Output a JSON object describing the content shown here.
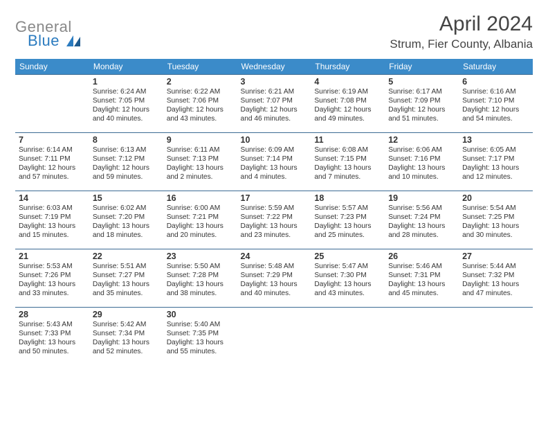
{
  "logo": {
    "word1": "General",
    "word2": "Blue"
  },
  "title": "April 2024",
  "location": "Strum, Fier County, Albania",
  "colors": {
    "header_bg": "#3b8bc9",
    "header_text": "#ffffff",
    "border": "#3b6a93",
    "text": "#333333",
    "muted": "#888888",
    "logo_gray": "#888888",
    "logo_blue": "#2b7bbf"
  },
  "day_headers": [
    "Sunday",
    "Monday",
    "Tuesday",
    "Wednesday",
    "Thursday",
    "Friday",
    "Saturday"
  ],
  "weeks": [
    [
      null,
      {
        "n": "1",
        "sr": "6:24 AM",
        "ss": "7:05 PM",
        "dl1": "Daylight: 12 hours",
        "dl2": "and 40 minutes."
      },
      {
        "n": "2",
        "sr": "6:22 AM",
        "ss": "7:06 PM",
        "dl1": "Daylight: 12 hours",
        "dl2": "and 43 minutes."
      },
      {
        "n": "3",
        "sr": "6:21 AM",
        "ss": "7:07 PM",
        "dl1": "Daylight: 12 hours",
        "dl2": "and 46 minutes."
      },
      {
        "n": "4",
        "sr": "6:19 AM",
        "ss": "7:08 PM",
        "dl1": "Daylight: 12 hours",
        "dl2": "and 49 minutes."
      },
      {
        "n": "5",
        "sr": "6:17 AM",
        "ss": "7:09 PM",
        "dl1": "Daylight: 12 hours",
        "dl2": "and 51 minutes."
      },
      {
        "n": "6",
        "sr": "6:16 AM",
        "ss": "7:10 PM",
        "dl1": "Daylight: 12 hours",
        "dl2": "and 54 minutes."
      }
    ],
    [
      {
        "n": "7",
        "sr": "6:14 AM",
        "ss": "7:11 PM",
        "dl1": "Daylight: 12 hours",
        "dl2": "and 57 minutes."
      },
      {
        "n": "8",
        "sr": "6:13 AM",
        "ss": "7:12 PM",
        "dl1": "Daylight: 12 hours",
        "dl2": "and 59 minutes."
      },
      {
        "n": "9",
        "sr": "6:11 AM",
        "ss": "7:13 PM",
        "dl1": "Daylight: 13 hours",
        "dl2": "and 2 minutes."
      },
      {
        "n": "10",
        "sr": "6:09 AM",
        "ss": "7:14 PM",
        "dl1": "Daylight: 13 hours",
        "dl2": "and 4 minutes."
      },
      {
        "n": "11",
        "sr": "6:08 AM",
        "ss": "7:15 PM",
        "dl1": "Daylight: 13 hours",
        "dl2": "and 7 minutes."
      },
      {
        "n": "12",
        "sr": "6:06 AM",
        "ss": "7:16 PM",
        "dl1": "Daylight: 13 hours",
        "dl2": "and 10 minutes."
      },
      {
        "n": "13",
        "sr": "6:05 AM",
        "ss": "7:17 PM",
        "dl1": "Daylight: 13 hours",
        "dl2": "and 12 minutes."
      }
    ],
    [
      {
        "n": "14",
        "sr": "6:03 AM",
        "ss": "7:19 PM",
        "dl1": "Daylight: 13 hours",
        "dl2": "and 15 minutes."
      },
      {
        "n": "15",
        "sr": "6:02 AM",
        "ss": "7:20 PM",
        "dl1": "Daylight: 13 hours",
        "dl2": "and 18 minutes."
      },
      {
        "n": "16",
        "sr": "6:00 AM",
        "ss": "7:21 PM",
        "dl1": "Daylight: 13 hours",
        "dl2": "and 20 minutes."
      },
      {
        "n": "17",
        "sr": "5:59 AM",
        "ss": "7:22 PM",
        "dl1": "Daylight: 13 hours",
        "dl2": "and 23 minutes."
      },
      {
        "n": "18",
        "sr": "5:57 AM",
        "ss": "7:23 PM",
        "dl1": "Daylight: 13 hours",
        "dl2": "and 25 minutes."
      },
      {
        "n": "19",
        "sr": "5:56 AM",
        "ss": "7:24 PM",
        "dl1": "Daylight: 13 hours",
        "dl2": "and 28 minutes."
      },
      {
        "n": "20",
        "sr": "5:54 AM",
        "ss": "7:25 PM",
        "dl1": "Daylight: 13 hours",
        "dl2": "and 30 minutes."
      }
    ],
    [
      {
        "n": "21",
        "sr": "5:53 AM",
        "ss": "7:26 PM",
        "dl1": "Daylight: 13 hours",
        "dl2": "and 33 minutes."
      },
      {
        "n": "22",
        "sr": "5:51 AM",
        "ss": "7:27 PM",
        "dl1": "Daylight: 13 hours",
        "dl2": "and 35 minutes."
      },
      {
        "n": "23",
        "sr": "5:50 AM",
        "ss": "7:28 PM",
        "dl1": "Daylight: 13 hours",
        "dl2": "and 38 minutes."
      },
      {
        "n": "24",
        "sr": "5:48 AM",
        "ss": "7:29 PM",
        "dl1": "Daylight: 13 hours",
        "dl2": "and 40 minutes."
      },
      {
        "n": "25",
        "sr": "5:47 AM",
        "ss": "7:30 PM",
        "dl1": "Daylight: 13 hours",
        "dl2": "and 43 minutes."
      },
      {
        "n": "26",
        "sr": "5:46 AM",
        "ss": "7:31 PM",
        "dl1": "Daylight: 13 hours",
        "dl2": "and 45 minutes."
      },
      {
        "n": "27",
        "sr": "5:44 AM",
        "ss": "7:32 PM",
        "dl1": "Daylight: 13 hours",
        "dl2": "and 47 minutes."
      }
    ],
    [
      {
        "n": "28",
        "sr": "5:43 AM",
        "ss": "7:33 PM",
        "dl1": "Daylight: 13 hours",
        "dl2": "and 50 minutes."
      },
      {
        "n": "29",
        "sr": "5:42 AM",
        "ss": "7:34 PM",
        "dl1": "Daylight: 13 hours",
        "dl2": "and 52 minutes."
      },
      {
        "n": "30",
        "sr": "5:40 AM",
        "ss": "7:35 PM",
        "dl1": "Daylight: 13 hours",
        "dl2": "and 55 minutes."
      },
      null,
      null,
      null,
      null
    ]
  ],
  "labels": {
    "sunrise_prefix": "Sunrise: ",
    "sunset_prefix": "Sunset: "
  }
}
